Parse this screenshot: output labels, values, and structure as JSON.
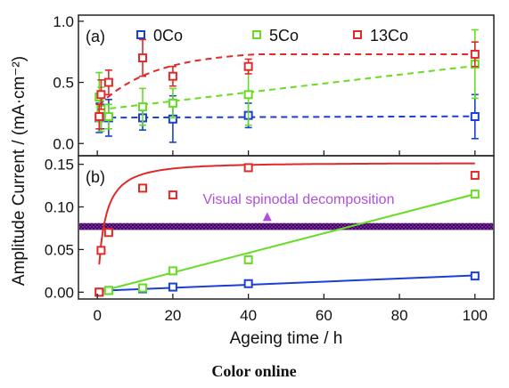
{
  "figure": {
    "shared_ylabel": "Amplitude Current / (mA·cm⁻²)",
    "xlabel": "Ageing time / h",
    "caption": "Color online",
    "x_ticks": [
      0,
      20,
      40,
      60,
      80,
      100
    ],
    "xlim": [
      -5,
      105
    ]
  },
  "chart_data": [
    {
      "type": "scatter",
      "panel_label": "(a)",
      "ylim": [
        -0.1,
        1.05
      ],
      "y_ticks": [
        "0.0",
        "0.5",
        "1.0"
      ],
      "legend_position": "top",
      "series": [
        {
          "name": "0Co",
          "color": "#1a3fd6",
          "x": [
            0.5,
            1,
            3,
            12,
            20,
            40,
            100
          ],
          "y": [
            0.21,
            0.22,
            0.21,
            0.21,
            0.2,
            0.23,
            0.22
          ],
          "err": [
            0.12,
            0.1,
            0.15,
            0.1,
            0.19,
            0.1,
            0.18
          ],
          "fit": "linear-dashed"
        },
        {
          "name": "5Co",
          "color": "#66dd22",
          "x": [
            0.5,
            1,
            3,
            12,
            20,
            40,
            100
          ],
          "y": [
            0.38,
            0.28,
            0.22,
            0.3,
            0.33,
            0.4,
            0.65
          ],
          "err": [
            0.2,
            0.18,
            0.1,
            0.15,
            0.12,
            0.25,
            0.28
          ],
          "fit": "linear-dashed"
        },
        {
          "name": "13Co",
          "color": "#e02a2a",
          "x": [
            0.5,
            1,
            3,
            12,
            20,
            40,
            100
          ],
          "y": [
            0.22,
            0.4,
            0.5,
            0.7,
            0.55,
            0.63,
            0.73
          ],
          "err": [
            0.1,
            0.12,
            0.1,
            0.15,
            0.08,
            0.06,
            0.1
          ],
          "fit": "rise-dashed"
        }
      ]
    },
    {
      "type": "scatter",
      "panel_label": "(b)",
      "ylim": [
        -0.008,
        0.16
      ],
      "y_ticks": [
        "0.00",
        "0.05",
        "0.10",
        "0.15"
      ],
      "band": {
        "y": [
          0.073,
          0.081
        ],
        "color": "#7a1fa0"
      },
      "annotation": {
        "text": "Visual spinodal decomposition",
        "arrow_x": 45,
        "arrow_y_from": 0.096,
        "arrow_y_to": 0.082,
        "color": "#b04fd8"
      },
      "series": [
        {
          "name": "0Co",
          "color": "#1a3fd6",
          "x": [
            0.5,
            3,
            12,
            20,
            40,
            100
          ],
          "y": [
            0.0,
            0.002,
            0.004,
            0.006,
            0.01,
            0.019
          ],
          "fit": "linear"
        },
        {
          "name": "5Co",
          "color": "#66dd22",
          "x": [
            0.5,
            3,
            12,
            20,
            40,
            100
          ],
          "y": [
            0.0,
            0.002,
            0.005,
            0.025,
            0.038,
            0.115
          ],
          "fit": "linear-from-start"
        },
        {
          "name": "13Co",
          "color": "#e02a2a",
          "x": [
            0.5,
            1,
            3,
            12,
            20,
            40,
            100
          ],
          "y": [
            0.0,
            0.049,
            0.07,
            0.122,
            0.114,
            0.146,
            0.137
          ],
          "fit": "saturating"
        }
      ]
    }
  ]
}
